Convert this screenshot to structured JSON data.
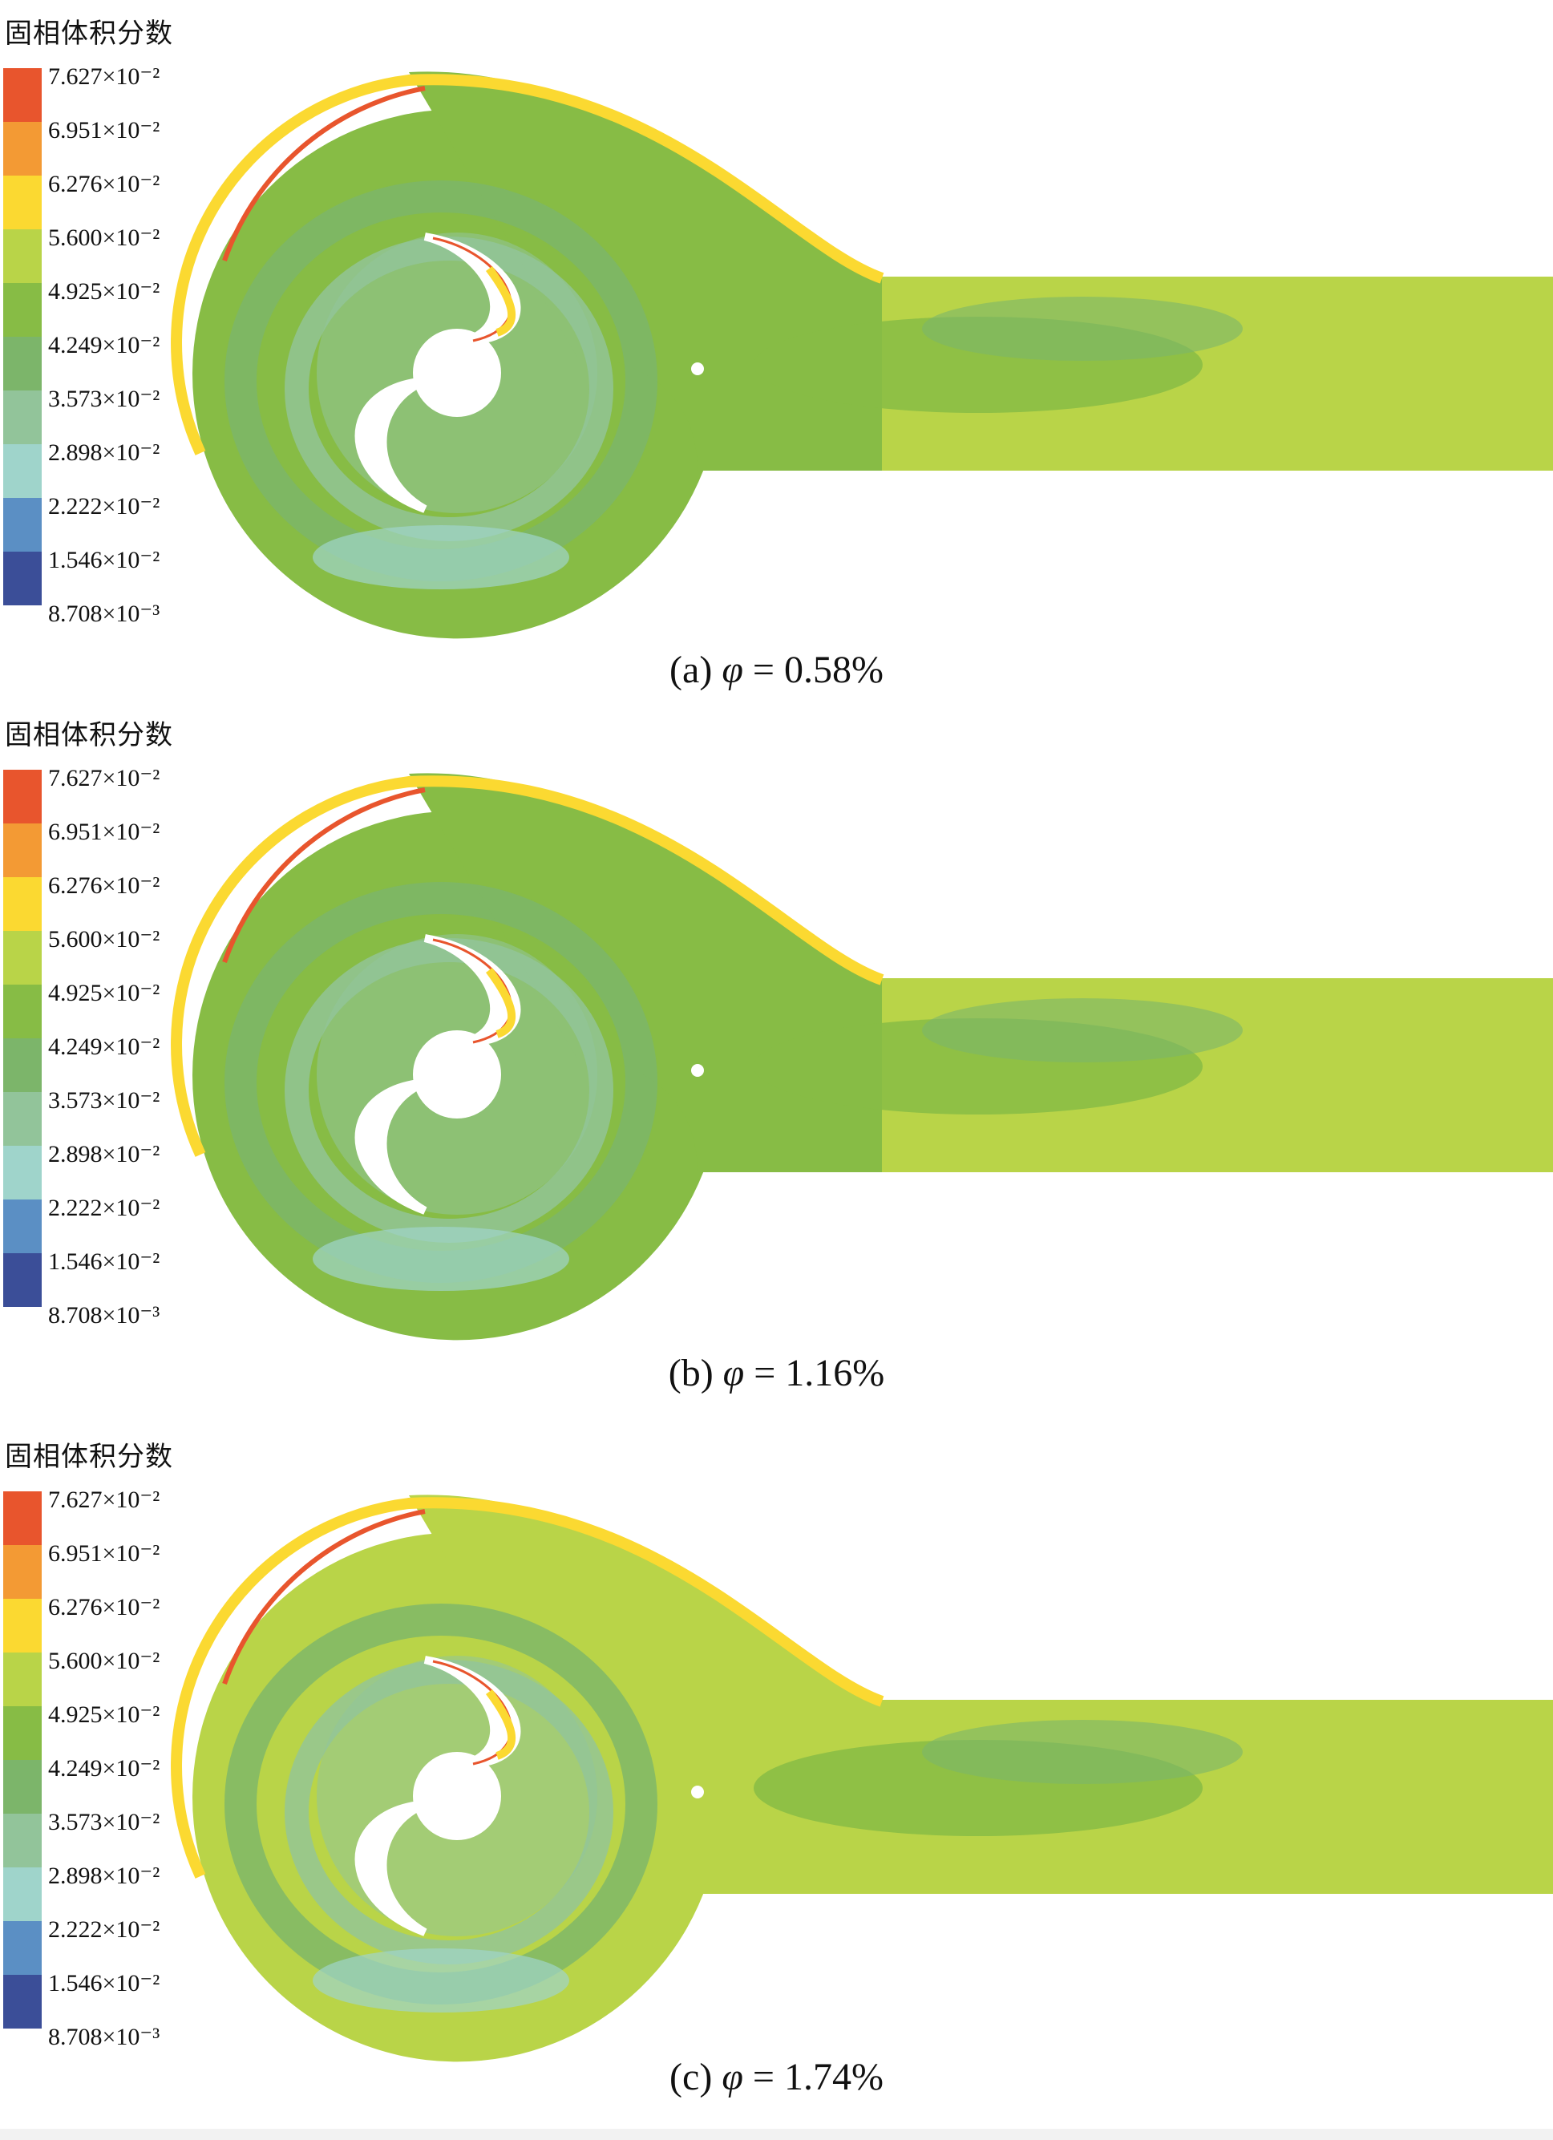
{
  "legend": {
    "title": "固相体积分数",
    "colors": [
      "#e8552d",
      "#f39a34",
      "#fbd931",
      "#b9d448",
      "#87bc45",
      "#7cb56a",
      "#92c49a",
      "#9fd4cb",
      "#5b8fc4",
      "#3b4e98"
    ],
    "labels": [
      "7.627×10⁻²",
      "6.951×10⁻²",
      "6.276×10⁻²",
      "5.600×10⁻²",
      "4.925×10⁻²",
      "4.249×10⁻²",
      "3.573×10⁻²",
      "2.898×10⁻²",
      "2.222×10⁻²",
      "1.546×10⁻²",
      "8.708×10⁻³"
    ]
  },
  "panels": [
    {
      "caption_prefix": "(a) ",
      "caption_symbol": "φ",
      "caption_value": " = 0.58%"
    },
    {
      "caption_prefix": "(b) ",
      "caption_symbol": "φ",
      "caption_value": " = 1.16%"
    },
    {
      "caption_prefix": "(c) ",
      "caption_symbol": "φ",
      "caption_value": " = 1.74%"
    }
  ]
}
